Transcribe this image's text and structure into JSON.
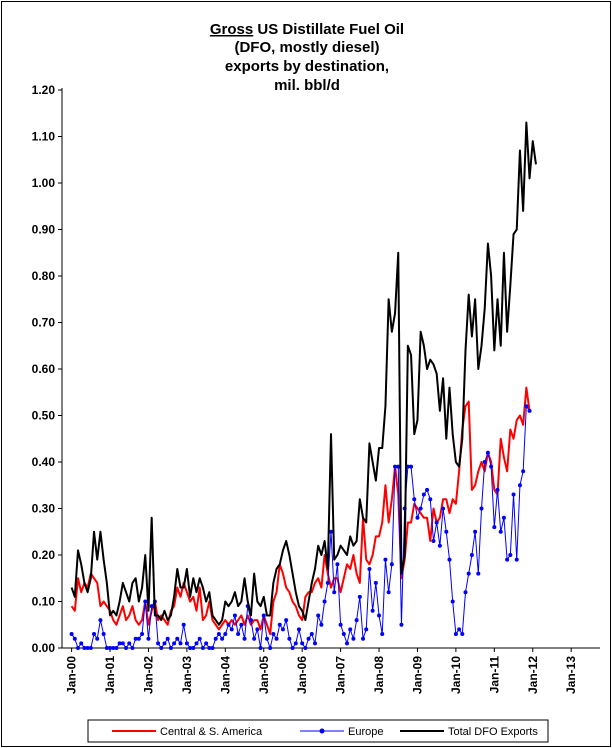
{
  "chart_data": {
    "type": "line",
    "title_emphasis": "Gross",
    "title_lines": [
      "US Distillate Fuel Oil",
      "(DFO, mostly diesel)",
      "exports by destination,",
      "mil. bbl/d"
    ],
    "x": [
      "2000-01",
      "2000-02",
      "2000-03",
      "2000-04",
      "2000-05",
      "2000-06",
      "2000-07",
      "2000-08",
      "2000-09",
      "2000-10",
      "2000-11",
      "2000-12",
      "2001-01",
      "2001-02",
      "2001-03",
      "2001-04",
      "2001-05",
      "2001-06",
      "2001-07",
      "2001-08",
      "2001-09",
      "2001-10",
      "2001-11",
      "2001-12",
      "2002-01",
      "2002-02",
      "2002-03",
      "2002-04",
      "2002-05",
      "2002-06",
      "2002-07",
      "2002-08",
      "2002-09",
      "2002-10",
      "2002-11",
      "2002-12",
      "2003-01",
      "2003-02",
      "2003-03",
      "2003-04",
      "2003-05",
      "2003-06",
      "2003-07",
      "2003-08",
      "2003-09",
      "2003-10",
      "2003-11",
      "2003-12",
      "2004-01",
      "2004-02",
      "2004-03",
      "2004-04",
      "2004-05",
      "2004-06",
      "2004-07",
      "2004-08",
      "2004-09",
      "2004-10",
      "2004-11",
      "2004-12",
      "2005-01",
      "2005-02",
      "2005-03",
      "2005-04",
      "2005-05",
      "2005-06",
      "2005-07",
      "2005-08",
      "2005-09",
      "2005-10",
      "2005-11",
      "2005-12",
      "2006-01",
      "2006-02",
      "2006-03",
      "2006-04",
      "2006-05",
      "2006-06",
      "2006-07",
      "2006-08",
      "2006-09",
      "2006-10",
      "2006-11",
      "2006-12",
      "2007-01",
      "2007-02",
      "2007-03",
      "2007-04",
      "2007-05",
      "2007-06",
      "2007-07",
      "2007-08",
      "2007-09",
      "2007-10",
      "2007-11",
      "2007-12",
      "2008-01",
      "2008-02",
      "2008-03",
      "2008-04",
      "2008-05",
      "2008-06",
      "2008-07",
      "2008-08",
      "2008-09",
      "2008-10",
      "2008-11",
      "2008-12",
      "2009-01",
      "2009-02",
      "2009-03",
      "2009-04",
      "2009-05",
      "2009-06",
      "2009-07",
      "2009-08",
      "2009-09",
      "2009-10",
      "2009-11",
      "2009-12",
      "2010-01",
      "2010-02",
      "2010-03",
      "2010-04",
      "2010-05",
      "2010-06",
      "2010-07",
      "2010-08",
      "2010-09",
      "2010-10",
      "2010-11",
      "2010-12",
      "2011-01",
      "2011-02",
      "2011-03",
      "2011-04",
      "2011-05",
      "2011-06",
      "2011-07",
      "2011-08",
      "2011-09",
      "2011-10",
      "2011-11",
      "2011-12",
      "2012-01",
      "2012-02"
    ],
    "series": [
      {
        "name": "Central & S. America",
        "color": "#ff0000",
        "marker": false,
        "values": [
          0.09,
          0.08,
          0.15,
          0.12,
          0.14,
          0.13,
          0.16,
          0.15,
          0.14,
          0.09,
          0.1,
          0.09,
          0.08,
          0.06,
          0.05,
          0.07,
          0.09,
          0.06,
          0.07,
          0.09,
          0.06,
          0.05,
          0.06,
          0.1,
          0.05,
          0.08,
          0.1,
          0.06,
          0.07,
          0.06,
          0.05,
          0.08,
          0.09,
          0.13,
          0.11,
          0.14,
          0.12,
          0.1,
          0.11,
          0.08,
          0.13,
          0.06,
          0.07,
          0.1,
          0.06,
          0.05,
          0.04,
          0.05,
          0.06,
          0.05,
          0.06,
          0.05,
          0.06,
          0.07,
          0.05,
          0.07,
          0.05,
          0.06,
          0.06,
          0.04,
          0.07,
          0.05,
          0.03,
          0.1,
          0.12,
          0.18,
          0.16,
          0.13,
          0.12,
          0.1,
          0.09,
          0.07,
          0.06,
          0.11,
          0.12,
          0.12,
          0.14,
          0.15,
          0.13,
          0.2,
          0.16,
          0.13,
          0.15,
          0.15,
          0.12,
          0.15,
          0.18,
          0.17,
          0.2,
          0.16,
          0.14,
          0.28,
          0.19,
          0.18,
          0.2,
          0.24,
          0.24,
          0.27,
          0.35,
          0.27,
          0.32,
          0.39,
          0.33,
          0.15,
          0.19,
          0.27,
          0.27,
          0.31,
          0.3,
          0.29,
          0.28,
          0.28,
          0.23,
          0.3,
          0.27,
          0.28,
          0.32,
          0.32,
          0.29,
          0.32,
          0.31,
          0.38,
          0.47,
          0.52,
          0.53,
          0.34,
          0.35,
          0.38,
          0.4,
          0.38,
          0.42,
          0.4,
          0.34,
          0.33,
          0.45,
          0.41,
          0.38,
          0.47,
          0.45,
          0.49,
          0.5,
          0.48,
          0.56,
          0.51,
          null,
          null
        ]
      },
      {
        "name": "Europe",
        "color": "#0000ff",
        "marker": true,
        "values": [
          0.03,
          0.02,
          0.0,
          0.01,
          0.0,
          0.0,
          0.0,
          0.03,
          0.02,
          0.06,
          0.03,
          0.0,
          0.0,
          0.0,
          0.0,
          0.01,
          0.01,
          0.0,
          0.01,
          0.0,
          0.02,
          0.02,
          0.03,
          0.1,
          0.02,
          0.09,
          0.1,
          0.01,
          0.0,
          0.01,
          0.02,
          0.0,
          0.01,
          0.02,
          0.01,
          0.05,
          0.01,
          0.0,
          0.0,
          0.01,
          0.02,
          0.0,
          0.01,
          0.0,
          0.0,
          0.02,
          0.03,
          0.02,
          0.03,
          0.05,
          0.04,
          0.07,
          0.03,
          0.05,
          0.02,
          0.09,
          0.06,
          0.02,
          0.04,
          0.0,
          0.07,
          0.02,
          0.0,
          0.03,
          0.02,
          0.05,
          0.04,
          0.06,
          0.02,
          0.0,
          0.01,
          0.04,
          0.01,
          0.0,
          0.02,
          0.03,
          0.01,
          0.07,
          0.05,
          0.1,
          0.14,
          0.25,
          0.12,
          0.18,
          0.05,
          0.03,
          0.01,
          0.04,
          0.02,
          0.06,
          0.11,
          0.02,
          0.04,
          0.17,
          0.08,
          0.14,
          0.07,
          0.03,
          0.19,
          0.12,
          0.18,
          0.39,
          0.39,
          0.05,
          0.3,
          0.39,
          0.39,
          0.32,
          0.28,
          0.3,
          0.33,
          0.34,
          0.32,
          0.23,
          0.27,
          0.22,
          0.3,
          0.25,
          0.19,
          0.1,
          0.03,
          0.04,
          0.03,
          0.12,
          0.16,
          0.2,
          0.25,
          0.16,
          0.3,
          0.4,
          0.42,
          0.39,
          0.26,
          0.34,
          0.25,
          0.28,
          0.19,
          0.2,
          0.33,
          0.19,
          0.35,
          0.38,
          0.52,
          0.51,
          null,
          null
        ]
      },
      {
        "name": "Total DFO Exports",
        "color": "#000000",
        "marker": false,
        "values": [
          0.13,
          0.11,
          0.21,
          0.18,
          0.14,
          0.12,
          0.15,
          0.25,
          0.19,
          0.25,
          0.19,
          0.14,
          0.07,
          0.08,
          0.07,
          0.1,
          0.14,
          0.12,
          0.1,
          0.14,
          0.15,
          0.1,
          0.13,
          0.2,
          0.08,
          0.28,
          0.07,
          0.07,
          0.06,
          0.08,
          0.06,
          0.07,
          0.11,
          0.17,
          0.13,
          0.13,
          0.17,
          0.11,
          0.15,
          0.12,
          0.15,
          0.13,
          0.1,
          0.12,
          0.07,
          0.06,
          0.05,
          0.06,
          0.1,
          0.09,
          0.1,
          0.12,
          0.09,
          0.1,
          0.15,
          0.1,
          0.07,
          0.16,
          0.1,
          0.09,
          0.11,
          0.07,
          0.07,
          0.14,
          0.17,
          0.18,
          0.21,
          0.23,
          0.2,
          0.16,
          0.12,
          0.09,
          0.08,
          0.06,
          0.1,
          0.14,
          0.17,
          0.22,
          0.2,
          0.23,
          0.17,
          0.46,
          0.19,
          0.2,
          0.22,
          0.21,
          0.2,
          0.24,
          0.22,
          0.23,
          0.32,
          0.28,
          0.27,
          0.44,
          0.4,
          0.36,
          0.43,
          0.43,
          0.52,
          0.75,
          0.68,
          0.72,
          0.85,
          0.16,
          0.2,
          0.65,
          0.63,
          0.46,
          0.49,
          0.68,
          0.65,
          0.6,
          0.62,
          0.61,
          0.59,
          0.51,
          0.58,
          0.45,
          0.56,
          0.46,
          0.4,
          0.39,
          0.45,
          0.64,
          0.76,
          0.67,
          0.75,
          0.6,
          0.65,
          0.73,
          0.87,
          0.8,
          0.64,
          0.75,
          0.65,
          0.85,
          0.68,
          0.78,
          0.89,
          0.9,
          1.07,
          0.94,
          1.13,
          1.01,
          1.09,
          1.04
        ]
      }
    ],
    "xlim": [
      "1999-10",
      "2013-10"
    ],
    "xticks": [
      {
        "value": "2000-01",
        "label": "Jan-00"
      },
      {
        "value": "2001-01",
        "label": "Jan-01"
      },
      {
        "value": "2002-01",
        "label": "Jan-02"
      },
      {
        "value": "2003-01",
        "label": "Jan-03"
      },
      {
        "value": "2004-01",
        "label": "Jan-04"
      },
      {
        "value": "2005-01",
        "label": "Jan-05"
      },
      {
        "value": "2006-01",
        "label": "Jan-06"
      },
      {
        "value": "2007-01",
        "label": "Jan-07"
      },
      {
        "value": "2008-01",
        "label": "Jan-08"
      },
      {
        "value": "2009-01",
        "label": "Jan-09"
      },
      {
        "value": "2010-01",
        "label": "Jan-10"
      },
      {
        "value": "2011-01",
        "label": "Jan-11"
      },
      {
        "value": "2012-01",
        "label": "Jan-12"
      },
      {
        "value": "2013-01",
        "label": "Jan-13"
      }
    ],
    "ylim": [
      0,
      1.2
    ],
    "yticks": [
      {
        "value": 0,
        "label": "0.00"
      },
      {
        "value": 0.1,
        "label": "0.10"
      },
      {
        "value": 0.2,
        "label": "0.20"
      },
      {
        "value": 0.3,
        "label": "0.30"
      },
      {
        "value": 0.4,
        "label": "0.40"
      },
      {
        "value": 0.5,
        "label": "0.50"
      },
      {
        "value": 0.6,
        "label": "0.60"
      },
      {
        "value": 0.7,
        "label": "0.70"
      },
      {
        "value": 0.8,
        "label": "0.80"
      },
      {
        "value": 0.9,
        "label": "0.90"
      },
      {
        "value": 1.0,
        "label": "1.00"
      },
      {
        "value": 1.1,
        "label": "1.10"
      },
      {
        "value": 1.2,
        "label": "1.20"
      }
    ],
    "grid": false,
    "legend": "bottom"
  }
}
